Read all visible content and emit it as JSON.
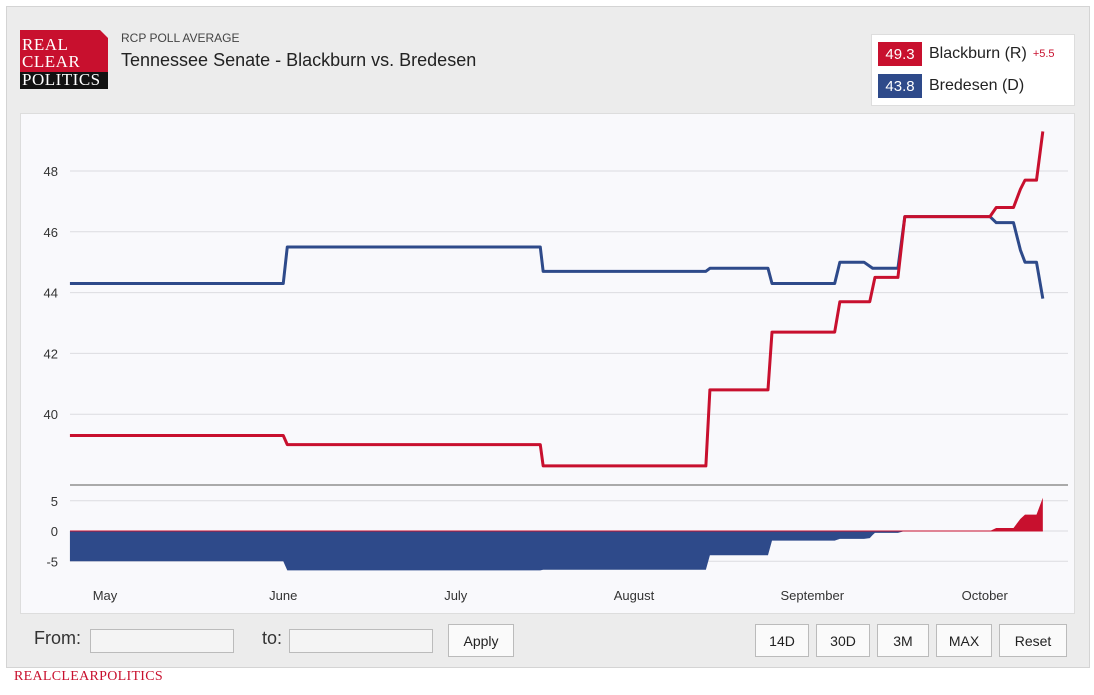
{
  "header": {
    "logo_lines": [
      "REAL",
      "CLEAR",
      "POLITICS"
    ],
    "subtitle": "RCP POLL AVERAGE",
    "title": "Tennessee Senate - Blackburn vs. Bredesen"
  },
  "legend": [
    {
      "value": "49.3",
      "name": "Blackburn (R)",
      "spread": "+5.5",
      "color": "#c8102e"
    },
    {
      "value": "43.8",
      "name": "Bredesen (D)",
      "color": "#2e4a8a"
    }
  ],
  "footer": {
    "from_label": "From:",
    "to_label": "to:",
    "from_value": "",
    "to_value": "",
    "apply": "Apply",
    "ranges": [
      "14D",
      "30D",
      "3M",
      "MAX",
      "Reset"
    ]
  },
  "brand_footer": "REALCLEARPOLITICS",
  "chart_data": {
    "type": "line",
    "x_unit": "days since May 1",
    "x_ticks": [
      {
        "day": 0,
        "label": "May"
      },
      {
        "day": 31,
        "label": "June"
      },
      {
        "day": 61,
        "label": "July"
      },
      {
        "day": 92,
        "label": "August"
      },
      {
        "day": 123,
        "label": "September"
      },
      {
        "day": 153,
        "label": "October"
      }
    ],
    "xlim": [
      -6.1,
      168
    ],
    "ylim": [
      37.8,
      49.8
    ],
    "y_ticks": [
      40,
      42,
      44,
      46,
      48
    ],
    "spread_ylim": [
      -6.8,
      7
    ],
    "spread_ticks": [
      5,
      0,
      -5
    ],
    "series": [
      {
        "name": "Blackburn (R)",
        "color": "#c8102e",
        "points": [
          [
            -6.1,
            39.3
          ],
          [
            31,
            39.3
          ],
          [
            31.7,
            39.0
          ],
          [
            75.7,
            39.0
          ],
          [
            76.2,
            38.3
          ],
          [
            104.5,
            38.3
          ],
          [
            105.2,
            40.8
          ],
          [
            115.3,
            40.8
          ],
          [
            116,
            42.7
          ],
          [
            126.9,
            42.7
          ],
          [
            127.8,
            43.7
          ],
          [
            133,
            43.7
          ],
          [
            133.9,
            44.5
          ],
          [
            137.9,
            44.5
          ],
          [
            139.1,
            46.5
          ],
          [
            153.9,
            46.5
          ],
          [
            155,
            46.8
          ],
          [
            158,
            46.8
          ],
          [
            159.2,
            47.4
          ],
          [
            160,
            47.7
          ],
          [
            162,
            47.7
          ],
          [
            163.1,
            49.3
          ]
        ]
      },
      {
        "name": "Bredesen (D)",
        "color": "#2e4a8a",
        "points": [
          [
            -6.1,
            44.3
          ],
          [
            31,
            44.3
          ],
          [
            31.7,
            45.5
          ],
          [
            75.7,
            45.5
          ],
          [
            76.2,
            44.7
          ],
          [
            104.5,
            44.7
          ],
          [
            105.2,
            44.8
          ],
          [
            115.3,
            44.8
          ],
          [
            116,
            44.3
          ],
          [
            126.9,
            44.3
          ],
          [
            127.8,
            45.0
          ],
          [
            132,
            45.0
          ],
          [
            133.5,
            44.8
          ],
          [
            137.9,
            44.8
          ],
          [
            139.1,
            46.5
          ],
          [
            153.9,
            46.5
          ],
          [
            155,
            46.3
          ],
          [
            158,
            46.3
          ],
          [
            159.2,
            45.4
          ],
          [
            160,
            45.0
          ],
          [
            162,
            45.0
          ],
          [
            163.1,
            43.8
          ]
        ]
      }
    ]
  }
}
